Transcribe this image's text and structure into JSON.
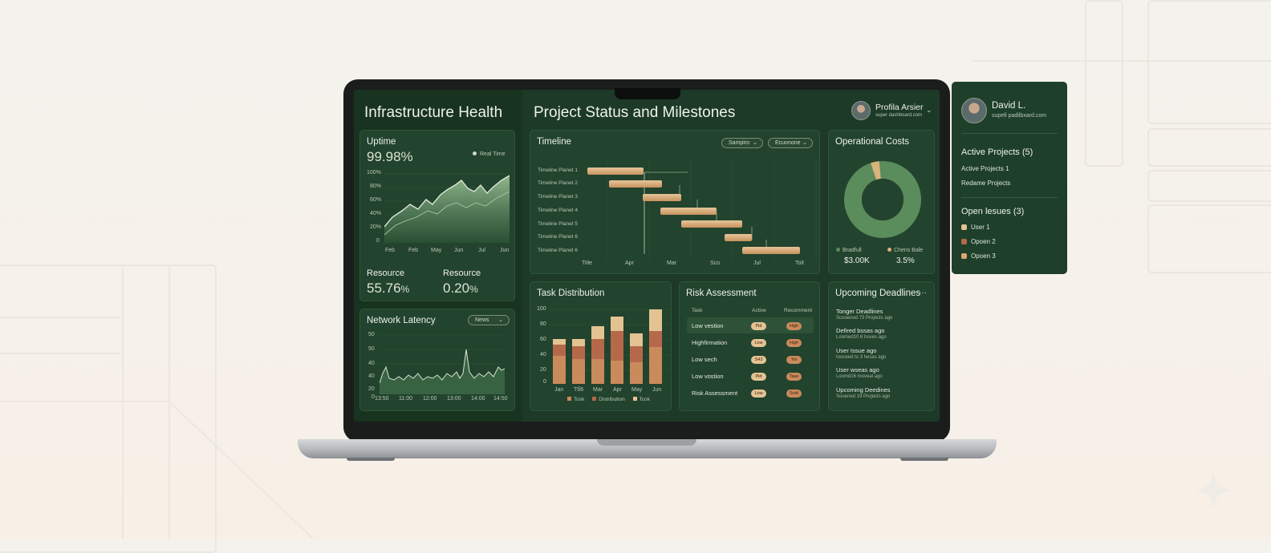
{
  "left_panel": {
    "title": "Infrastructure Health",
    "uptime": {
      "title": "Uptime",
      "value": "99.98%",
      "legend": "Real Time",
      "y_ticks": [
        "100%",
        "80%",
        "60%",
        "40%",
        "20%",
        "0"
      ],
      "x_ticks": [
        "Feb",
        "Feb",
        "May",
        "Jun",
        "Jul",
        "Jun"
      ]
    },
    "resource1": {
      "label": "Resource",
      "value": "55.76",
      "unit": "%"
    },
    "resource2": {
      "label": "Resource",
      "value": "0.20",
      "unit": "%"
    },
    "network": {
      "title": "Network Latency",
      "dropdown": "News",
      "y_ticks": [
        "50",
        "50",
        "40",
        "40",
        "20",
        "0"
      ],
      "x_ticks": [
        "13:50",
        "11:00",
        "12:00",
        "13:00",
        "14:00",
        "14:50"
      ]
    }
  },
  "header": {
    "title": "Project Status and Milestones",
    "profile_name": "Profila Arsier",
    "profile_sub": "super dashboard.com"
  },
  "timeline": {
    "title": "Timeline",
    "filter1": "Sampiro",
    "filter2": "Ecuonone",
    "rows": [
      "Timeline Planet 1",
      "Timeline Planet 2",
      "Timeline Planet 3",
      "Timeline Planet 4",
      "Timeline Planet 5",
      "Timeline Planet 6",
      "Timeline Planet 6"
    ],
    "x_ticks": [
      "Title",
      "Apr",
      "Mar",
      "Sco",
      "Jul",
      "Tolt"
    ]
  },
  "costs": {
    "title": "Operational Costs",
    "legend1": {
      "label": "Bradfull",
      "value": "$3.00K"
    },
    "legend2": {
      "label": "Chens Bale",
      "value": "3.5%"
    },
    "colors": {
      "main": "#5b8c5b",
      "accent": "#d9b27c"
    }
  },
  "tasks": {
    "title": "Task Distribution",
    "y_ticks": [
      "100",
      "80",
      "60",
      "40",
      "20",
      "0"
    ],
    "legend": [
      "Tosk",
      "Distribution",
      "Tcok"
    ]
  },
  "risk": {
    "title": "Risk Assessment",
    "col1": "Task",
    "col2": "Active",
    "col3": "Recomment",
    "rows": [
      {
        "name": "Low vestion",
        "a": "Pid",
        "b": "High"
      },
      {
        "name": "Highfirmation",
        "a": "Low",
        "b": "High"
      },
      {
        "name": "Low sech",
        "a": "S43",
        "b": "Yol"
      },
      {
        "name": "Low vostion",
        "a": "Pid",
        "b": "Tave"
      },
      {
        "name": "Risk Assessment",
        "a": "Low",
        "b": "Sold"
      }
    ]
  },
  "deadlines": {
    "title": "Upcoming Deadlines",
    "more": "···",
    "items": [
      {
        "title": "Tonger Deadlines",
        "sub": "Scooened 73 Projects ago"
      },
      {
        "title": "Defired bssas ago",
        "sub": "Loomed10 6 hoves ago"
      },
      {
        "title": "User Issue ago",
        "sub": "Iooceed to 3 hesas ago"
      },
      {
        "title": "User wseas ago",
        "sub": "Loomd16 moveal ago"
      },
      {
        "title": "Upcoming Deedines",
        "sub": "Sooened 19 Projects ago"
      }
    ]
  },
  "side_panel": {
    "name": "David L.",
    "email": "supefi padilbxard.com",
    "active_label": "Active Projects",
    "active_count": "(5)",
    "links": [
      "Active Projects 1",
      "Redame Projects"
    ],
    "issues_label": "Open lesues",
    "issues_count": "(3)",
    "issues": [
      "User 1",
      "Opoen 2",
      "Opoen 3"
    ]
  }
}
